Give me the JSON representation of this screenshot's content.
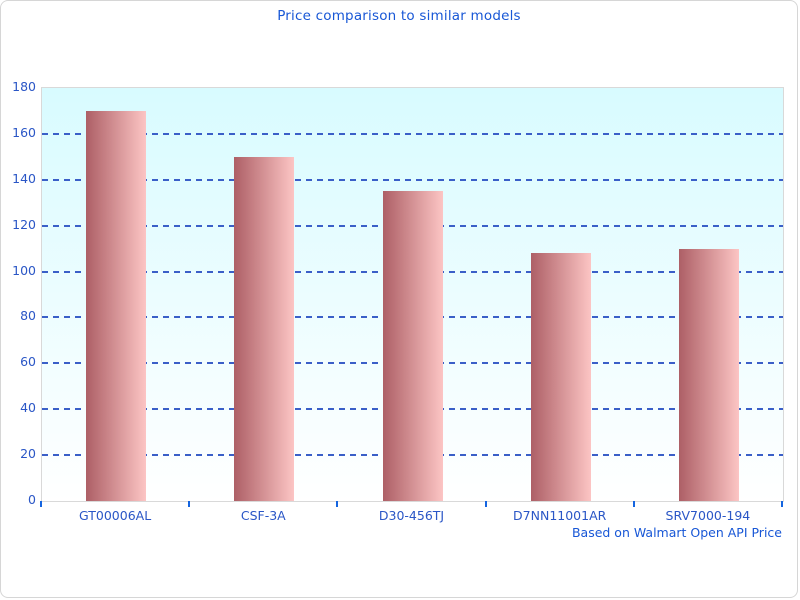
{
  "window": {
    "background": "#ffffff",
    "border_color": "#d6d6d6"
  },
  "chart_data": {
    "type": "bar",
    "title": "Price comparison to similar models",
    "categories": [
      "GT00006AL",
      "CSF-3A",
      "D30-456TJ",
      "D7NN11001AR",
      "SRV7000-194"
    ],
    "values": [
      170,
      150,
      135,
      108,
      110
    ],
    "xlabel": "",
    "ylabel": "",
    "ylim": [
      0,
      180
    ],
    "yticks": [
      0,
      20,
      40,
      60,
      80,
      100,
      120,
      140,
      160,
      180
    ],
    "grid": "horizontal-dashed",
    "legend": "none",
    "footnote": "Based on Walmart Open API Price",
    "colors": {
      "title_text": "#1857d6",
      "axis_label_text": "#2a56c6",
      "gridline": "#3a5fc8",
      "tick": "#1565e0",
      "plot_bg_top": "#d8fbff",
      "plot_bg_bottom": "#ffffff",
      "plot_border": "#d9d9d9",
      "outer_border": "#d6d6d6",
      "bar_gradient_left": "#ad5f66",
      "bar_gradient_right": "#fcc5c4"
    }
  }
}
